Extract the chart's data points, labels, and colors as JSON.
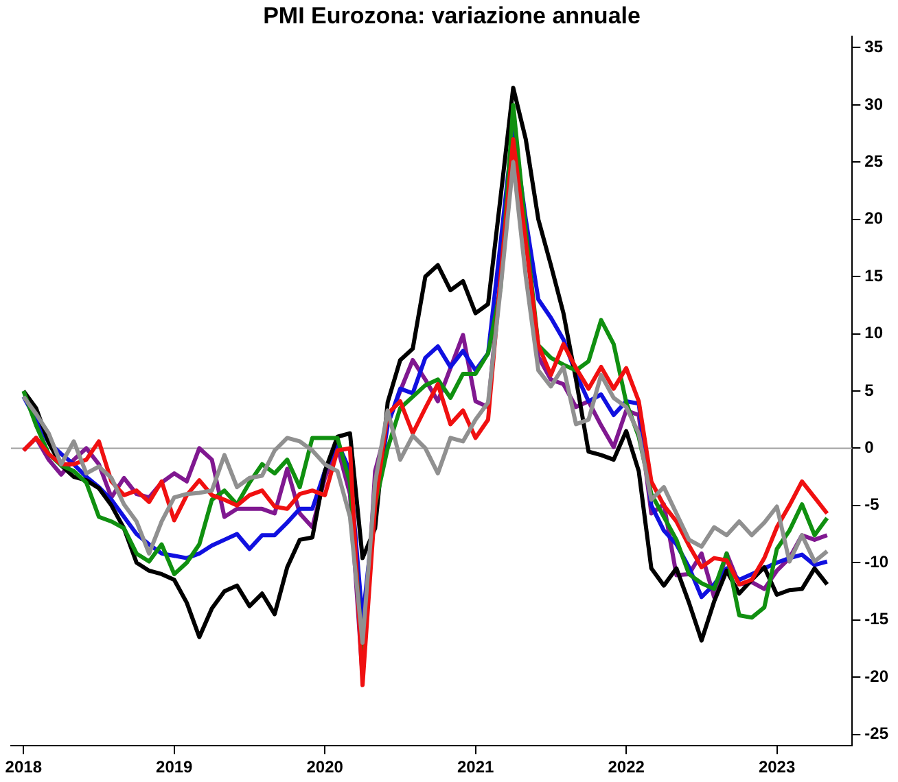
{
  "chart_data": {
    "type": "line",
    "title": "PMI Eurozona: variazione annuale",
    "x": [
      "2018-01",
      "2018-02",
      "2018-03",
      "2018-04",
      "2018-05",
      "2018-06",
      "2018-07",
      "2018-08",
      "2018-09",
      "2018-10",
      "2018-11",
      "2018-12",
      "2019-01",
      "2019-02",
      "2019-03",
      "2019-04",
      "2019-05",
      "2019-06",
      "2019-07",
      "2019-08",
      "2019-09",
      "2019-10",
      "2019-11",
      "2019-12",
      "2020-01",
      "2020-02",
      "2020-03",
      "2020-04",
      "2020-05",
      "2020-06",
      "2020-07",
      "2020-08",
      "2020-09",
      "2020-10",
      "2020-11",
      "2020-12",
      "2021-01",
      "2021-02",
      "2021-03",
      "2021-04",
      "2021-05",
      "2021-06",
      "2021-07",
      "2021-08",
      "2021-09",
      "2021-10",
      "2021-11",
      "2021-12",
      "2022-01",
      "2022-02",
      "2022-03",
      "2022-04",
      "2022-05",
      "2022-06",
      "2022-07",
      "2022-08",
      "2022-09",
      "2022-10",
      "2022-11",
      "2022-12",
      "2023-01",
      "2023-02",
      "2023-03",
      "2023-04",
      "2023-05"
    ],
    "series": [
      {
        "color": "#000000",
        "values": [
          5,
          3.5,
          0.5,
          -1.5,
          -2.5,
          -2.8,
          -3.5,
          -5,
          -7,
          -10,
          -10.7,
          -11,
          -11.5,
          -13.5,
          -16.5,
          -14,
          -12.5,
          -12,
          -13.8,
          -12.7,
          -14.5,
          -10.4,
          -8,
          -7.8,
          -2,
          1,
          1.3,
          -9.6,
          -7,
          4,
          7.7,
          8.7,
          15,
          16,
          13.8,
          14.6,
          11.8,
          12.6,
          22,
          31.5,
          27,
          20,
          16,
          11.8,
          6,
          -0.3,
          -0.6,
          -1,
          1.5,
          -2,
          -10.5,
          -12,
          -10.5,
          -13.5,
          -16.8,
          -13.4,
          -10.7,
          -12.7,
          -11.5,
          -10.4,
          -12.8,
          -12.4,
          -12.3,
          -10.5,
          -11.9
        ]
      },
      {
        "color": "#109010",
        "values": [
          5,
          2,
          -0.5,
          -1.5,
          -2,
          -3,
          -6,
          -6.4,
          -7,
          -9.2,
          -9.9,
          -8.4,
          -11,
          -10,
          -8.4,
          -4.5,
          -3.7,
          -4.9,
          -3,
          -1.4,
          -2.2,
          -1,
          -3.4,
          0.9,
          0.9,
          0.9,
          -3,
          -18,
          -5,
          0,
          3.5,
          4.5,
          5.5,
          6,
          4.4,
          6.5,
          6.5,
          8.3,
          14,
          30,
          19,
          9,
          7.9,
          7.3,
          6.8,
          7.6,
          11.2,
          9.1,
          4,
          1,
          -4,
          -6,
          -8,
          -11,
          -11.8,
          -12.3,
          -9.2,
          -14.6,
          -14.8,
          -13.9,
          -8.8,
          -7.2,
          -4.9,
          -7.6,
          -6.1
        ]
      },
      {
        "color": "#1010e0",
        "values": [
          4.5,
          2.5,
          0.5,
          -0.5,
          -1.4,
          -2.5,
          -3.4,
          -4.5,
          -6,
          -7.5,
          -8.4,
          -9.2,
          -9.4,
          -9.6,
          -9.2,
          -8.5,
          -8,
          -7.5,
          -8.8,
          -7.6,
          -7.6,
          -6.5,
          -5.3,
          -5.3,
          -2,
          0.5,
          -2,
          -15,
          -5,
          2,
          5.2,
          4.8,
          7.9,
          8.9,
          7.1,
          8.5,
          6.8,
          8.3,
          18,
          28,
          20,
          13,
          11.4,
          9.5,
          6.5,
          4.1,
          4.7,
          2.9,
          4.1,
          3.9,
          -5,
          -7.2,
          -8.4,
          -10.4,
          -13,
          -11.9,
          -10.5,
          -11.5,
          -11,
          -10.5,
          -10,
          -9.6,
          -9.3,
          -10.2,
          -9.9
        ]
      },
      {
        "color": "#f01010",
        "values": [
          -0.2,
          0.9,
          -0.5,
          -1.4,
          -1.4,
          -1,
          0.6,
          -2.9,
          -4.1,
          -3.7,
          -4.7,
          -2.9,
          -6.3,
          -4.1,
          -2.8,
          -4.1,
          -4.5,
          -5,
          -4.1,
          -3.7,
          -5.1,
          -5.3,
          -4,
          -3.7,
          -4.1,
          -0.2,
          0,
          -20.7,
          -5,
          3,
          4.1,
          1.3,
          3.5,
          5.6,
          2.1,
          3.3,
          0.9,
          2.5,
          15,
          27,
          18,
          9,
          6.4,
          9.1,
          7,
          5.2,
          7.1,
          5.2,
          7,
          4.1,
          -2.9,
          -5,
          -6.4,
          -8.5,
          -10.4,
          -9.6,
          -9.8,
          -11.9,
          -11.5,
          -9.6,
          -6.9,
          -5,
          -2.9,
          -4.3,
          -5.7
        ]
      },
      {
        "color": "#801890",
        "values": [
          -0.2,
          0.9,
          -1,
          -2.3,
          -1,
          0,
          -1.4,
          -4.3,
          -2.6,
          -4,
          -4.3,
          -3,
          -2.2,
          -2.9,
          0,
          -1,
          -6,
          -5.3,
          -5.3,
          -5.3,
          -5.7,
          -1.8,
          -5.7,
          -6.9,
          -2.6,
          0.1,
          -4,
          -20,
          -2,
          2.1,
          5,
          7.7,
          6,
          4.1,
          7,
          9.9,
          4.1,
          3.6,
          15,
          28,
          19,
          8,
          6,
          5.6,
          3.6,
          4.1,
          2,
          0.1,
          3.3,
          2.9,
          -5.7,
          -4.9,
          -11.1,
          -11,
          -9.2,
          -13,
          -9.2,
          -11.9,
          -11.7,
          -12.3,
          -10.7,
          -9.6,
          -7.6,
          -8,
          -7.6
        ]
      },
      {
        "color": "#909090",
        "values": [
          4.5,
          3,
          1.3,
          -1.4,
          0.6,
          -2.2,
          -1.6,
          -2.6,
          -4.9,
          -6.4,
          -9.2,
          -6.4,
          -4.3,
          -4,
          -3.9,
          -3.7,
          -0.6,
          -3.4,
          -2.6,
          -2.4,
          -0.2,
          0.9,
          0.6,
          -0.2,
          -1.4,
          -2,
          -6,
          -17,
          -3,
          3.3,
          -1,
          1.1,
          0,
          -2.2,
          0.9,
          0.6,
          2.5,
          4,
          14,
          25,
          15,
          6.8,
          5.4,
          7.1,
          2.1,
          2.5,
          6.4,
          4.4,
          3.6,
          1.3,
          -4.5,
          -3.4,
          -5.7,
          -8,
          -8.6,
          -6.9,
          -7.6,
          -6.4,
          -7.6,
          -6.5,
          -5.1,
          -9.9,
          -7.6,
          -9.9,
          -9
        ]
      }
    ],
    "xlim": [
      "2017-12",
      "2023-07"
    ],
    "xticks": [
      "2018",
      "2019",
      "2020",
      "2021",
      "2022",
      "2023"
    ],
    "ylim": [
      -26,
      36
    ],
    "yticks": [
      -25,
      -20,
      -15,
      -10,
      -5,
      0,
      5,
      10,
      15,
      20,
      25,
      30,
      35
    ],
    "ref_lines": [
      {
        "axis": "y",
        "value": 0,
        "color": "#a0a0a0"
      }
    ],
    "grid": false,
    "marker": "none",
    "line_style": "solid"
  }
}
